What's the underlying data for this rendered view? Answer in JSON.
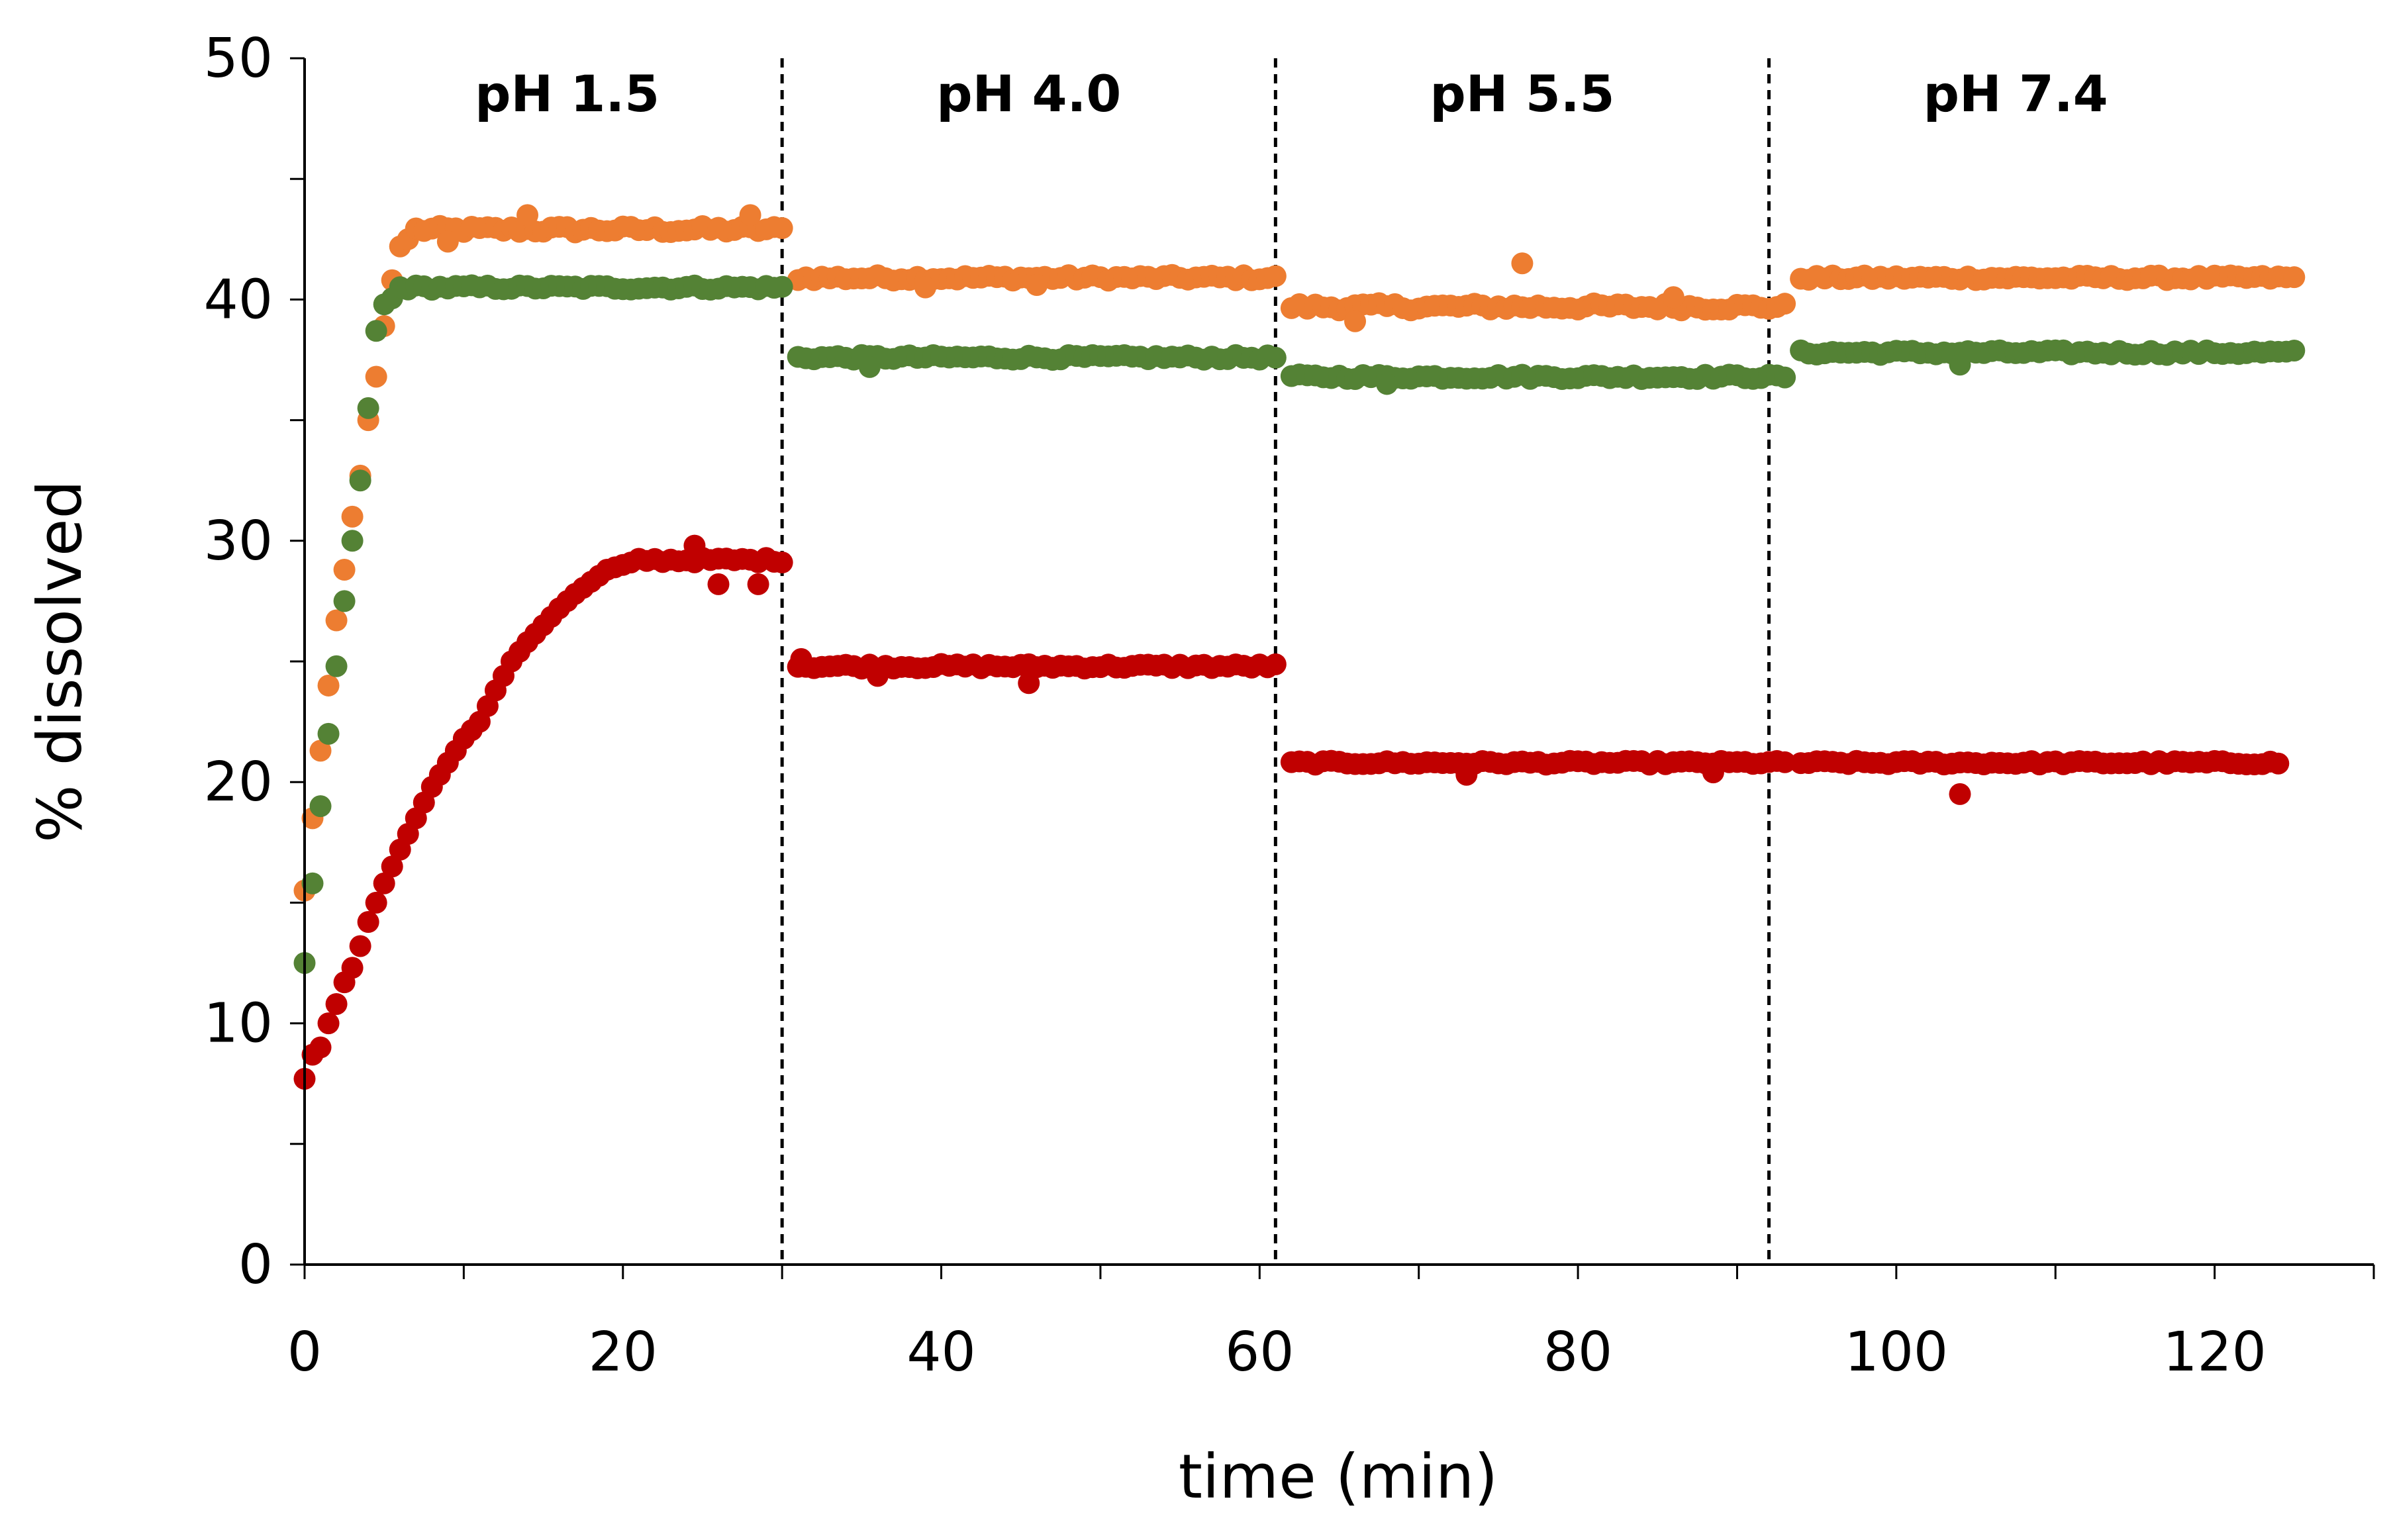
{
  "chart_data": {
    "type": "scatter",
    "title": "",
    "xlabel": "time (min)",
    "ylabel": "% dissolved",
    "xlim": [
      0,
      130
    ],
    "ylim": [
      0,
      50
    ],
    "xticks": [
      0,
      20,
      40,
      60,
      80,
      100,
      120
    ],
    "xtick_labels": [
      "0",
      "20",
      "40",
      "60",
      "80",
      "100",
      "120"
    ],
    "xminor_step": 10,
    "yticks": [
      0,
      10,
      20,
      30,
      40,
      50
    ],
    "ytick_labels": [
      "0",
      "10",
      "20",
      "30",
      "40",
      "50"
    ],
    "yminor_step": 5,
    "grid": false,
    "legend": "none",
    "phase_boundaries": [
      30,
      61,
      92
    ],
    "phases": [
      {
        "label": "pH 1.5",
        "x": 16.5
      },
      {
        "label": "pH 4.0",
        "x": 45.5
      },
      {
        "label": "pH 5.5",
        "x": 76.5
      },
      {
        "label": "pH 7.4",
        "x": 107.5
      }
    ],
    "series": [
      {
        "name": "orange",
        "color": "#ED7D31",
        "segments": [
          {
            "x_start": 0,
            "x_end": 30,
            "step": 0.5,
            "ramp": [
              [
                0,
                15.5
              ],
              [
                0.5,
                18.5
              ],
              [
                1,
                21.3
              ],
              [
                1.5,
                24
              ],
              [
                2,
                26.7
              ],
              [
                2.5,
                28.8
              ],
              [
                3,
                31
              ],
              [
                3.5,
                32.7
              ],
              [
                4,
                35
              ],
              [
                4.5,
                36.8
              ],
              [
                5,
                38.9
              ],
              [
                5.5,
                40.8
              ],
              [
                6,
                42.2
              ],
              [
                7,
                42.8
              ]
            ],
            "plateau": 42.9,
            "noise": 0.15,
            "outliers": [
              [
                14,
                43.5
              ],
              [
                28,
                43.5
              ],
              [
                9,
                42.4
              ]
            ]
          },
          {
            "x_start": 31,
            "x_end": 61,
            "step": 0.5,
            "plateau": 40.9,
            "noise": 0.12,
            "outliers": [
              [
                39,
                40.5
              ],
              [
                46,
                40.6
              ]
            ]
          },
          {
            "x_start": 62,
            "x_end": 93,
            "step": 0.5,
            "plateau": 39.7,
            "noise": 0.15,
            "outliers": [
              [
                76.5,
                41.5
              ],
              [
                66,
                39.1
              ],
              [
                86,
                40.1
              ]
            ]
          },
          {
            "x_start": 94,
            "x_end": 125,
            "step": 0.5,
            "plateau": 40.9,
            "noise": 0.1,
            "outliers": []
          }
        ]
      },
      {
        "name": "green",
        "color": "#548235",
        "segments": [
          {
            "x_start": 0,
            "x_end": 30,
            "step": 0.5,
            "ramp": [
              [
                0,
                12.5
              ],
              [
                0.5,
                15.8
              ],
              [
                1,
                19
              ],
              [
                1.5,
                22
              ],
              [
                2,
                24.8
              ],
              [
                2.5,
                27.5
              ],
              [
                3,
                30
              ],
              [
                3.5,
                32.5
              ],
              [
                4,
                35.5
              ],
              [
                4.5,
                38.7
              ],
              [
                5,
                39.8
              ],
              [
                6,
                40.3
              ]
            ],
            "plateau": 40.5,
            "noise": 0.1,
            "outliers": []
          },
          {
            "x_start": 31,
            "x_end": 61,
            "step": 0.5,
            "plateau": 37.6,
            "noise": 0.1,
            "outliers": [
              [
                35.5,
                37.2
              ]
            ]
          },
          {
            "x_start": 62,
            "x_end": 93,
            "step": 0.5,
            "plateau": 36.8,
            "noise": 0.1,
            "outliers": [
              [
                68,
                36.5
              ]
            ]
          },
          {
            "x_start": 94,
            "x_end": 125,
            "step": 0.5,
            "plateau": 37.8,
            "noise": 0.1,
            "outliers": [
              [
                104,
                37.3
              ]
            ]
          }
        ]
      },
      {
        "name": "red",
        "color": "#C00000",
        "segments": [
          {
            "x_start": 0,
            "x_end": 30,
            "step": 0.5,
            "ramp": [
              [
                0,
                7.7
              ],
              [
                0.5,
                8.7
              ],
              [
                1,
                9
              ],
              [
                1.5,
                10
              ],
              [
                2,
                10.8
              ],
              [
                2.5,
                11.7
              ],
              [
                3,
                12.3
              ],
              [
                3.5,
                13.2
              ],
              [
                4,
                14.2
              ],
              [
                5,
                15.8
              ],
              [
                6,
                17.2
              ],
              [
                7,
                18.5
              ],
              [
                8,
                19.8
              ],
              [
                9,
                20.8
              ],
              [
                10,
                21.8
              ],
              [
                11,
                22.5
              ],
              [
                12,
                23.8
              ],
              [
                13,
                25
              ],
              [
                14,
                25.8
              ],
              [
                15,
                26.5
              ],
              [
                16,
                27.2
              ],
              [
                17,
                27.8
              ],
              [
                18,
                28.3
              ],
              [
                19,
                28.8
              ],
              [
                20,
                29
              ],
              [
                21,
                29.2
              ]
            ],
            "plateau": 29.2,
            "noise": 0.1,
            "outliers": [
              [
                24.5,
                29.8
              ],
              [
                26,
                28.2
              ],
              [
                28.5,
                28.2
              ]
            ]
          },
          {
            "x_start": 31,
            "x_end": 61,
            "step": 0.5,
            "plateau": 24.8,
            "noise": 0.1,
            "outliers": [
              [
                31.2,
                25.1
              ],
              [
                36,
                24.4
              ],
              [
                45.5,
                24.1
              ]
            ]
          },
          {
            "x_start": 62,
            "x_end": 93,
            "step": 0.5,
            "plateau": 20.8,
            "noise": 0.08,
            "outliers": [
              [
                73,
                20.3
              ],
              [
                88.5,
                20.4
              ]
            ]
          },
          {
            "x_start": 94,
            "x_end": 124,
            "step": 0.5,
            "plateau": 20.8,
            "noise": 0.08,
            "outliers": [
              [
                104,
                19.5
              ]
            ]
          }
        ]
      }
    ]
  }
}
